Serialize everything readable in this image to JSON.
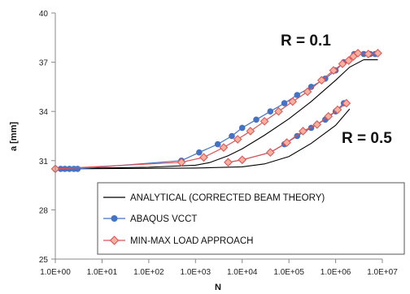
{
  "chart_data": {
    "type": "line",
    "title": "",
    "xlabel": "N",
    "ylabel": "a [mm]",
    "x_scale": "log",
    "xlim": [
      1,
      10000000
    ],
    "ylim": [
      25,
      40
    ],
    "x_ticks": [
      "1.0E+00",
      "1.0E+01",
      "1.0E+02",
      "1.0E+03",
      "1.0E+04",
      "1.0E+05",
      "1.0E+06",
      "1.0E+07"
    ],
    "y_ticks": [
      25,
      28,
      31,
      34,
      37,
      40
    ],
    "grid": false,
    "legend_position": "bottom-right",
    "annotations": [
      {
        "text": "R = 0.1"
      },
      {
        "text": "R = 0.5"
      }
    ],
    "series": [
      {
        "name": "ANALYTICAL (CORRECTED BEAM THEORY)",
        "color": "#000000",
        "marker": "none",
        "curves": [
          {
            "group": "R = 0.1",
            "points": [
              [
                1,
                30.5
              ],
              [
                100,
                30.6
              ],
              [
                1000,
                30.72
              ],
              [
                2000,
                30.88
              ],
              [
                5000,
                31.3
              ],
              [
                10000,
                31.72
              ],
              [
                30000,
                32.55
              ],
              [
                100000,
                33.55
              ],
              [
                300000,
                34.6
              ],
              [
                1000000,
                35.9
              ],
              [
                2000000,
                36.7
              ],
              [
                4000000,
                37.15
              ],
              [
                8000000,
                37.15
              ]
            ]
          },
          {
            "group": "R = 0.5",
            "points": [
              [
                1,
                30.5
              ],
              [
                1000,
                30.55
              ],
              [
                10000,
                30.62
              ],
              [
                30000,
                30.8
              ],
              [
                100000,
                31.25
              ],
              [
                300000,
                32.05
              ],
              [
                1000000,
                33.15
              ],
              [
                2000000,
                34.15
              ]
            ]
          }
        ]
      },
      {
        "name": "ABAQUS VCCT",
        "color": "#4472C4",
        "marker": "circle",
        "curves": [
          {
            "group": "R = 0.1",
            "points": [
              [
                1,
                30.5
              ],
              [
                1.3,
                30.5
              ],
              [
                1.6,
                30.5
              ],
              [
                2,
                30.5
              ],
              [
                2.5,
                30.5
              ],
              [
                3,
                30.5
              ],
              [
                500,
                31
              ],
              [
                1200,
                31.5
              ],
              [
                3000,
                32
              ],
              [
                6000,
                32.5
              ],
              [
                10000,
                33
              ],
              [
                20000,
                33.5
              ],
              [
                40000,
                34
              ],
              [
                80000,
                34.5
              ],
              [
                150000,
                35
              ],
              [
                300000,
                35.5
              ],
              [
                600000,
                36
              ],
              [
                1000000,
                36.5
              ],
              [
                1500000,
                37
              ],
              [
                2500000,
                37.5
              ],
              [
                4000000,
                37.5
              ],
              [
                5500000,
                37.5
              ],
              [
                7000000,
                37.5
              ]
            ]
          },
          {
            "group": "R = 0.5",
            "points": [
              [
                5000,
                30.9
              ],
              [
                10000,
                31.05
              ],
              [
                40000,
                31.5
              ],
              [
                80000,
                32
              ],
              [
                150000,
                32.5
              ],
              [
                300000,
                33
              ],
              [
                600000,
                33.5
              ],
              [
                1000000,
                34
              ],
              [
                1500000,
                34.5
              ]
            ]
          }
        ]
      },
      {
        "name": "MIN-MAX LOAD APPROACH",
        "color": "#E05050",
        "marker": "diamond",
        "curves": [
          {
            "group": "R = 0.1",
            "points": [
              [
                1,
                30.5
              ],
              [
                500,
                30.9
              ],
              [
                1500,
                31.2
              ],
              [
                4000,
                31.8
              ],
              [
                8000,
                32.3
              ],
              [
                15000,
                32.8
              ],
              [
                30000,
                33.4
              ],
              [
                60000,
                34
              ],
              [
                120000,
                34.6
              ],
              [
                250000,
                35.2
              ],
              [
                500000,
                35.9
              ],
              [
                900000,
                36.5
              ],
              [
                1400000,
                36.9
              ],
              [
                1900000,
                37.1
              ],
              [
                2400000,
                37.35
              ],
              [
                3000000,
                37.55
              ],
              [
                5000000,
                37.5
              ],
              [
                8000000,
                37.55
              ]
            ]
          },
          {
            "group": "R = 0.5",
            "points": [
              [
                5000,
                30.9
              ],
              [
                10000,
                31.05
              ],
              [
                40000,
                31.5
              ],
              [
                90000,
                32.1
              ],
              [
                200000,
                32.8
              ],
              [
                400000,
                33.2
              ],
              [
                700000,
                33.7
              ],
              [
                1100000,
                34.1
              ],
              [
                1700000,
                34.5
              ]
            ]
          }
        ]
      }
    ]
  }
}
